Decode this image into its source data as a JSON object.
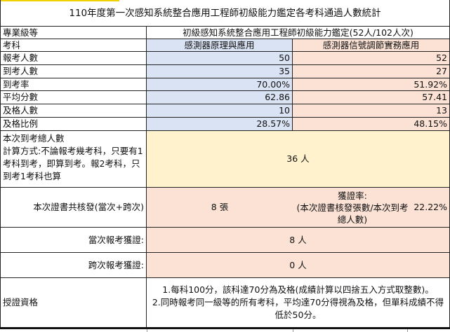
{
  "title": "110年度第一次感知系統整合應用工程師初級能力鑑定各考科通過人數統計",
  "level_label": "專業級等",
  "level_value": "初級感知系統整合應用工程師初級能力鑑定(52人/102人次)",
  "subject_label": "考科",
  "subjects": [
    "感測器原理與應用",
    "感測器信號調節實務應用"
  ],
  "rows": [
    {
      "label": "報考人數",
      "values": [
        "50",
        "52"
      ]
    },
    {
      "label": "到考人數",
      "values": [
        "35",
        "27"
      ]
    },
    {
      "label": "到考率",
      "values": [
        "70.00%",
        "51.92%"
      ]
    },
    {
      "label": "平均分數",
      "values": [
        "62.86",
        "57.41"
      ]
    },
    {
      "label": "及格人數",
      "values": [
        "10",
        "13"
      ]
    },
    {
      "label": "及格比例",
      "values": [
        "28.57%",
        "48.15%"
      ]
    }
  ],
  "total_attendees": {
    "label": "本次到考總人數\n計算方式:不論報考幾考科，只要有1考科到考，即算到考。報2考科，只到考1考科也算",
    "value": "36 人"
  },
  "certificates": {
    "label": "本次證書共核發(當次+跨次)",
    "value": "8 張",
    "rate_label": "獲證率:\n(本次證書核發張數/本次到考總人數)",
    "rate_value": "22.22%"
  },
  "same_session": {
    "label": "當次報考獲證:",
    "value": "8 人"
  },
  "cross_session": {
    "label": "跨次報考獲證:",
    "value": "0 人"
  },
  "qualification": {
    "label": "授證資格",
    "text": "1.每科100分，該科達70分為及格(成績計算以四捨五入方式取整數)。\n2.同時報考同一級等的所有考科，平均達70分得視為及格，但單科成績不得低於50分。"
  },
  "colors": {
    "blue": "#dae3f3",
    "peach": "#fbe2d5",
    "yellow": "#fff2cc"
  }
}
